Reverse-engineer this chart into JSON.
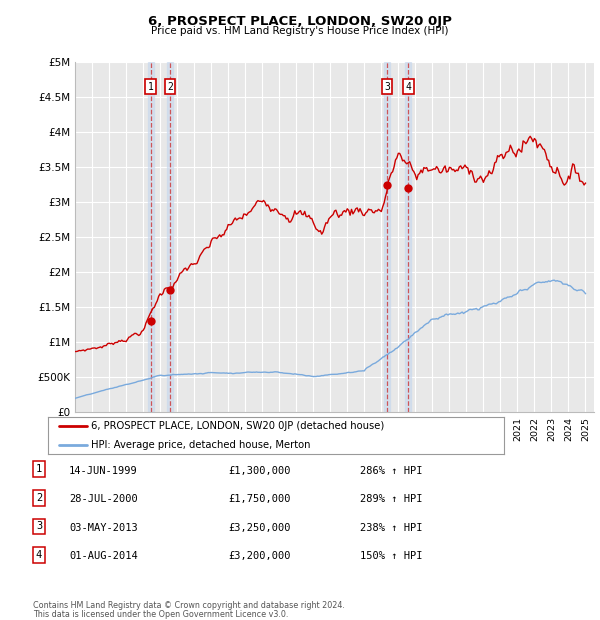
{
  "title": "6, PROSPECT PLACE, LONDON, SW20 0JP",
  "subtitle": "Price paid vs. HM Land Registry's House Price Index (HPI)",
  "hpi_label": "HPI: Average price, detached house, Merton",
  "sale_label": "6, PROSPECT PLACE, LONDON, SW20 0JP (detached house)",
  "footer1": "Contains HM Land Registry data © Crown copyright and database right 2024.",
  "footer2": "This data is licensed under the Open Government Licence v3.0.",
  "ylim": [
    0,
    5000000
  ],
  "yticks": [
    0,
    500000,
    1000000,
    1500000,
    2000000,
    2500000,
    3000000,
    3500000,
    4000000,
    4500000,
    5000000
  ],
  "ytick_labels": [
    "£0",
    "£500K",
    "£1M",
    "£1.5M",
    "£2M",
    "£2.5M",
    "£3M",
    "£3.5M",
    "£4M",
    "£4.5M",
    "£5M"
  ],
  "sale_color": "#cc0000",
  "hpi_color": "#7aaadd",
  "bg_color": "#e8e8e8",
  "grid_color": "#ffffff",
  "sales": [
    {
      "date": 1999.45,
      "price": 1300000,
      "label": "1"
    },
    {
      "date": 2000.58,
      "price": 1750000,
      "label": "2"
    },
    {
      "date": 2013.34,
      "price": 3250000,
      "label": "3"
    },
    {
      "date": 2014.58,
      "price": 3200000,
      "label": "4"
    }
  ],
  "sale_table": [
    {
      "num": "1",
      "date": "14-JUN-1999",
      "price": "£1,300,000",
      "pct": "286% ↑ HPI"
    },
    {
      "num": "2",
      "date": "28-JUL-2000",
      "price": "£1,750,000",
      "pct": "289% ↑ HPI"
    },
    {
      "num": "3",
      "date": "03-MAY-2013",
      "price": "£3,250,000",
      "pct": "238% ↑ HPI"
    },
    {
      "num": "4",
      "date": "01-AUG-2014",
      "price": "£3,200,000",
      "pct": "150% ↑ HPI"
    }
  ]
}
